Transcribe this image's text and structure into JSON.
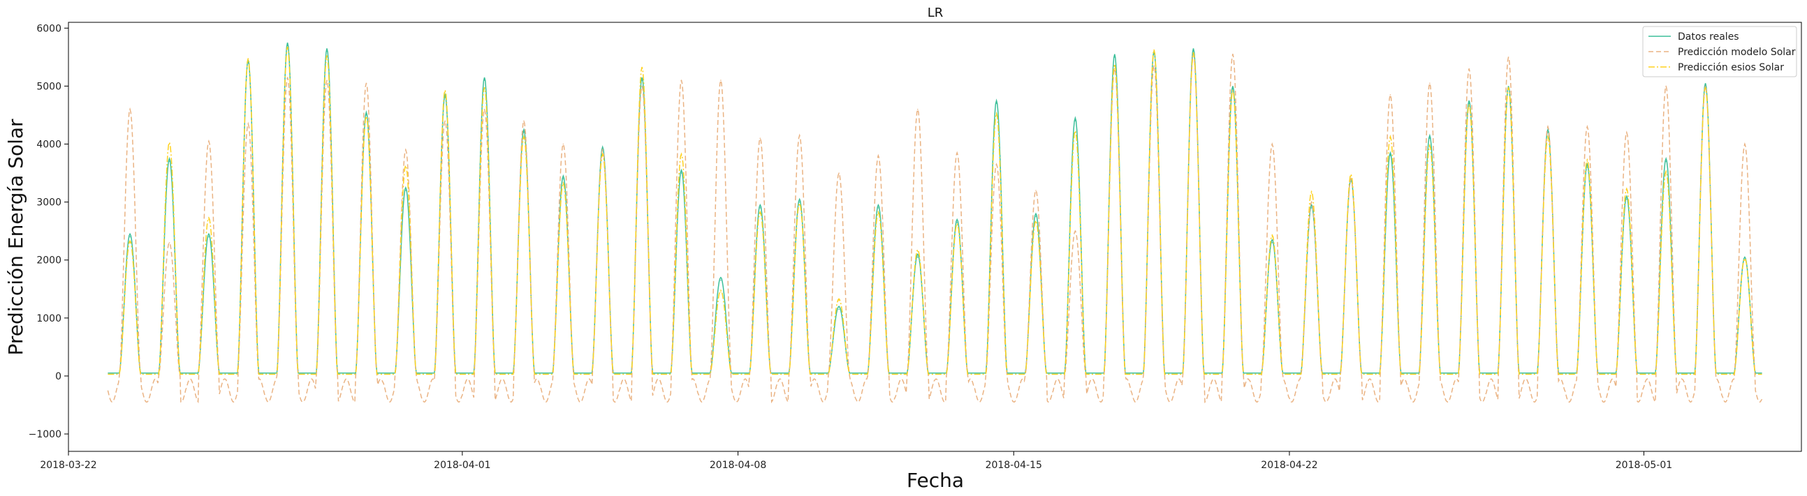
{
  "chart_data": {
    "type": "line",
    "title": "LR",
    "xlabel": "Fecha",
    "ylabel": "Predicción Energía Solar",
    "x_start": "2018-03-22",
    "x_end": "2018-05-05",
    "ylim": [
      -1300,
      6100
    ],
    "x_tick_labels": [
      "2018-03-22",
      "2018-04-01",
      "2018-04-08",
      "2018-04-15",
      "2018-04-22",
      "2018-05-01"
    ],
    "x_tick_values": [
      "2018-03-22",
      "2018-04-01",
      "2018-04-08",
      "2018-04-15",
      "2018-04-22",
      "2018-05-01"
    ],
    "y_ticks": [
      -1000,
      0,
      1000,
      2000,
      3000,
      4000,
      5000,
      6000
    ],
    "y_tick_labels": [
      "−1000",
      "0",
      "1000",
      "2000",
      "3000",
      "4000",
      "5000",
      "6000"
    ],
    "legend_position": "top-right",
    "grid": false,
    "series": [
      {
        "name": "Datos reales",
        "color": "#3cbf9a",
        "dash": "solid",
        "x": [
          "2018-03-23",
          "2018-03-24",
          "2018-03-25",
          "2018-03-26",
          "2018-03-27",
          "2018-03-28",
          "2018-03-29",
          "2018-03-30",
          "2018-03-31",
          "2018-04-01",
          "2018-04-02",
          "2018-04-03",
          "2018-04-04",
          "2018-04-05",
          "2018-04-06",
          "2018-04-07",
          "2018-04-08",
          "2018-04-09",
          "2018-04-10",
          "2018-04-11",
          "2018-04-12",
          "2018-04-13",
          "2018-04-14",
          "2018-04-15",
          "2018-04-16",
          "2018-04-17",
          "2018-04-18",
          "2018-04-19",
          "2018-04-20",
          "2018-04-21",
          "2018-04-22",
          "2018-04-23",
          "2018-04-24",
          "2018-04-25",
          "2018-04-26",
          "2018-04-27",
          "2018-04-28",
          "2018-04-29",
          "2018-04-30",
          "2018-05-01",
          "2018-05-02",
          "2018-05-03"
        ],
        "values": [
          2400,
          3700,
          2400,
          5400,
          5700,
          5600,
          4500,
          3200,
          4800,
          5100,
          4200,
          3400,
          3900,
          5100,
          3500,
          1650,
          2900,
          3000,
          1150,
          2900,
          2050,
          2650,
          4700,
          2750,
          4400,
          5500,
          5550,
          5600,
          4950,
          2300,
          2900,
          3350,
          3800,
          4100,
          4700,
          4950,
          4200,
          3600,
          3050,
          3700,
          5000,
          2000
        ]
      },
      {
        "name": "Predicción modelo Solar",
        "color": "#eab383",
        "dash": "dashed",
        "x": [
          "2018-03-23",
          "2018-03-24",
          "2018-03-25",
          "2018-03-26",
          "2018-03-27",
          "2018-03-28",
          "2018-03-29",
          "2018-03-30",
          "2018-03-31",
          "2018-04-01",
          "2018-04-02",
          "2018-04-03",
          "2018-04-04",
          "2018-04-05",
          "2018-04-06",
          "2018-04-07",
          "2018-04-08",
          "2018-04-09",
          "2018-04-10",
          "2018-04-11",
          "2018-04-12",
          "2018-04-13",
          "2018-04-14",
          "2018-04-15",
          "2018-04-16",
          "2018-04-17",
          "2018-04-18",
          "2018-04-19",
          "2018-04-20",
          "2018-04-21",
          "2018-04-22",
          "2018-04-23",
          "2018-04-24",
          "2018-04-25",
          "2018-04-26",
          "2018-04-27",
          "2018-04-28",
          "2018-04-29",
          "2018-04-30",
          "2018-05-01",
          "2018-05-02",
          "2018-05-03"
        ],
        "values": [
          4600,
          2300,
          4050,
          4350,
          5150,
          5100,
          5050,
          3900,
          4400,
          4600,
          4400,
          4000,
          3900,
          5000,
          5100,
          5100,
          4100,
          4150,
          3500,
          3800,
          4600,
          3850,
          3650,
          3200,
          2500,
          5300,
          5350,
          5550,
          5550,
          4000,
          3000,
          3400,
          4850,
          5050,
          5300,
          5500,
          4300,
          4300,
          4200,
          5000,
          5000,
          4000
        ]
      },
      {
        "name": "Predicción esios Solar",
        "color": "#ffd21f",
        "dash": "dashdot",
        "x": [
          "2018-03-23",
          "2018-03-24",
          "2018-03-25",
          "2018-03-26",
          "2018-03-27",
          "2018-03-28",
          "2018-03-29",
          "2018-03-30",
          "2018-03-31",
          "2018-04-01",
          "2018-04-02",
          "2018-04-03",
          "2018-04-04",
          "2018-04-05",
          "2018-04-06",
          "2018-04-07",
          "2018-04-08",
          "2018-04-09",
          "2018-04-10",
          "2018-04-11",
          "2018-04-12",
          "2018-04-13",
          "2018-04-14",
          "2018-04-15",
          "2018-04-16",
          "2018-04-17",
          "2018-04-18",
          "2018-04-19",
          "2018-04-20",
          "2018-04-21",
          "2018-04-22",
          "2018-04-23",
          "2018-04-24",
          "2018-04-25",
          "2018-04-26",
          "2018-04-27",
          "2018-04-28",
          "2018-04-29",
          "2018-04-30",
          "2018-05-01",
          "2018-05-02",
          "2018-05-03"
        ],
        "values": [
          2300,
          4000,
          2700,
          5450,
          5650,
          5500,
          4450,
          3600,
          4900,
          4950,
          4100,
          3300,
          3800,
          5300,
          3800,
          1450,
          2800,
          2950,
          1300,
          2800,
          2150,
          2600,
          4500,
          2650,
          4200,
          5350,
          5600,
          5550,
          4900,
          2400,
          3150,
          3450,
          4100,
          3950,
          4650,
          4950,
          4100,
          3700,
          3200,
          3500,
          4950,
          2000
        ]
      }
    ]
  }
}
